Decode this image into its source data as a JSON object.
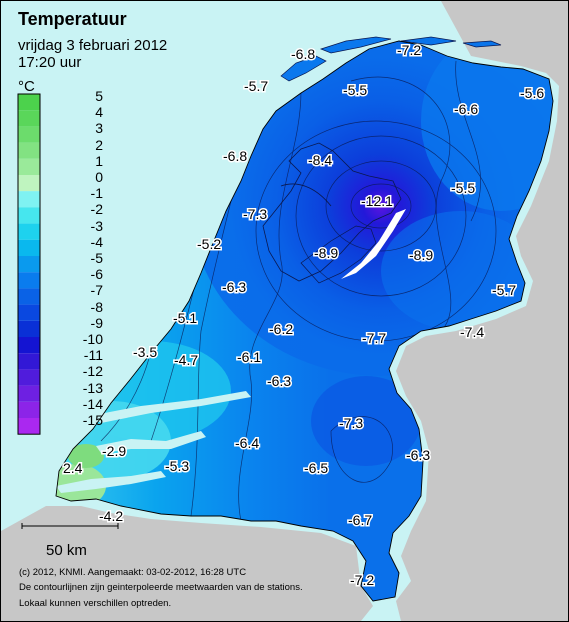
{
  "header": {
    "title": "Temperatuur",
    "date": "vrijdag 3 februari 2012",
    "time": "17:20 uur"
  },
  "legend": {
    "unit": "°C",
    "steps": [
      {
        "label": "5",
        "color": "#4cd24c"
      },
      {
        "label": "4",
        "color": "#5ad65a"
      },
      {
        "label": "3",
        "color": "#6cdc6c"
      },
      {
        "label": "2",
        "color": "#82e282"
      },
      {
        "label": "1",
        "color": "#9aea9a"
      },
      {
        "label": "0",
        "color": "#bff4bf"
      },
      {
        "label": "-1",
        "color": "#7ff2f2"
      },
      {
        "label": "-2",
        "color": "#46e6ee"
      },
      {
        "label": "-3",
        "color": "#1ed2ee"
      },
      {
        "label": "-4",
        "color": "#0ab8ee"
      },
      {
        "label": "-5",
        "color": "#0a9aee"
      },
      {
        "label": "-6",
        "color": "#0a7cee"
      },
      {
        "label": "-7",
        "color": "#0a62e6"
      },
      {
        "label": "-8",
        "color": "#0a48e0"
      },
      {
        "label": "-9",
        "color": "#0a30d6"
      },
      {
        "label": "-10",
        "color": "#1414d2"
      },
      {
        "label": "-11",
        "color": "#3218d6"
      },
      {
        "label": "-12",
        "color": "#501cdc"
      },
      {
        "label": "-13",
        "color": "#6e20e2"
      },
      {
        "label": "-14",
        "color": "#8c24e8"
      },
      {
        "label": "-15",
        "color": "#aa28f0"
      }
    ]
  },
  "stations": [
    {
      "label": "-6.8"
    },
    {
      "label": "-7.2"
    },
    {
      "label": "-5.7"
    },
    {
      "label": "-5.5"
    },
    {
      "label": "-6.6"
    },
    {
      "label": "-5.6"
    },
    {
      "label": "-6.8"
    },
    {
      "label": "-8.4"
    },
    {
      "label": "-12.1"
    },
    {
      "label": "-5.5"
    },
    {
      "label": "-7.3"
    },
    {
      "label": "-5.2"
    },
    {
      "label": "-8.9"
    },
    {
      "label": "-8.9"
    },
    {
      "label": "-6.3"
    },
    {
      "label": "-5.7"
    },
    {
      "label": "-5.1"
    },
    {
      "label": "-6.2"
    },
    {
      "label": "-7.7"
    },
    {
      "label": "-7.4"
    },
    {
      "label": "-3.5"
    },
    {
      "label": "-4.7"
    },
    {
      "label": "-6.1"
    },
    {
      "label": "-6.3"
    },
    {
      "label": "-7.3"
    },
    {
      "label": "-2.9"
    },
    {
      "label": "-6.4"
    },
    {
      "label": "-6.3"
    },
    {
      "label": "2.4"
    },
    {
      "label": "-5.3"
    },
    {
      "label": "-6.5"
    },
    {
      "label": "-4.2"
    },
    {
      "label": "-6.7"
    },
    {
      "label": "-7.2"
    }
  ],
  "scalebar": {
    "label": "50 km"
  },
  "footer": {
    "line1": "(c) 2012, KNMI. Aangemaakt: 03-02-2012, 16:28 UTC",
    "line2": "De contourlijnen zijn geinterpoleerde meetwaarden van de stations.",
    "line3": "Lokaal kunnen verschillen optreden."
  }
}
